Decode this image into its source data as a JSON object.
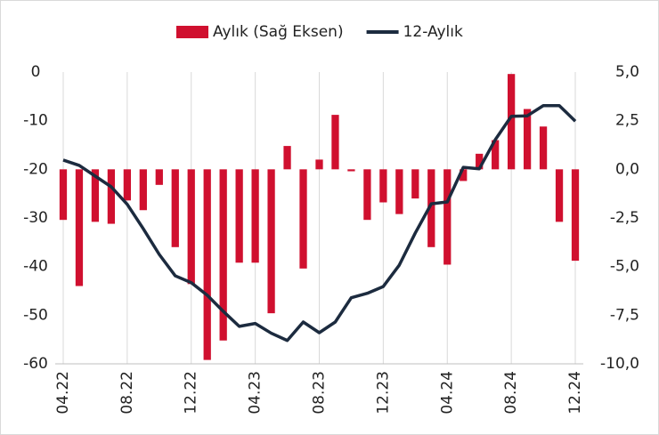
{
  "chart_data": {
    "type": "bar-line",
    "categories": [
      "04.22",
      null,
      null,
      null,
      "08.22",
      null,
      null,
      null,
      "12.22",
      null,
      null,
      null,
      "04.23",
      null,
      null,
      null,
      "08.23",
      null,
      null,
      null,
      "12.23",
      null,
      null,
      null,
      "04.24",
      null,
      null,
      null,
      "08.24",
      null,
      null,
      null,
      "12.24"
    ],
    "series": [
      {
        "name": "Aylık (Sağ Eksen)",
        "type": "bar",
        "axis": "y2",
        "color": "#d0102f",
        "values": [
          -2.6,
          -6.0,
          -2.7,
          -2.8,
          -1.6,
          -2.1,
          -0.8,
          -4.0,
          -5.9,
          -9.8,
          -8.8,
          -4.8,
          -4.8,
          -7.4,
          1.2,
          -5.1,
          0.5,
          2.8,
          -0.1,
          -2.6,
          -1.7,
          -2.3,
          -1.5,
          -4.0,
          -4.9,
          -0.6,
          0.8,
          1.5,
          4.9,
          3.1,
          2.2,
          -2.7,
          -4.7
        ]
      },
      {
        "name": "12-Aylık",
        "type": "line",
        "axis": "y",
        "color": "#1c2b3f",
        "values": [
          -18.1,
          -19.2,
          -21.4,
          -23.6,
          -27.2,
          -32.2,
          -37.5,
          -41.9,
          -43.3,
          -45.9,
          -49.2,
          -52.3,
          -51.7,
          -53.7,
          -55.2,
          -51.4,
          -53.6,
          -51.4,
          -46.4,
          -45.5,
          -44.1,
          -39.7,
          -33.1,
          -27.1,
          -26.7,
          -19.6,
          -19.9,
          -13.9,
          -9.1,
          -9.0,
          -6.9,
          -6.9,
          -10.1
        ]
      }
    ],
    "ylim": [
      -60,
      0
    ],
    "yticks": [
      0,
      -10,
      -20,
      -30,
      -40,
      -50,
      -60
    ],
    "y2lim": [
      -10,
      5
    ],
    "y2ticks": [
      {
        "value": 5,
        "label": "5,0"
      },
      {
        "value": 2.5,
        "label": "2,5"
      },
      {
        "value": 0,
        "label": "0,0"
      },
      {
        "value": -2.5,
        "label": "-2,5"
      },
      {
        "value": -5,
        "label": "-5,0"
      },
      {
        "value": -7.5,
        "label": "-7,5"
      },
      {
        "value": -10,
        "label": "-10,0"
      }
    ],
    "grid": true,
    "legend": "top"
  }
}
